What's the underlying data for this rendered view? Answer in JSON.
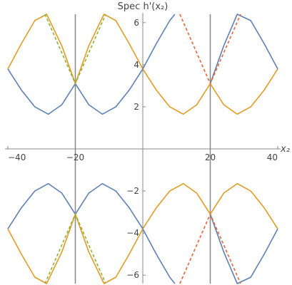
{
  "chart_data": {
    "type": "line",
    "title": "",
    "ylabel": "Spec h'(x₂)",
    "xlabel": "x₂",
    "xlim": [
      -40,
      40
    ],
    "ylim": [
      -6.4,
      6.4
    ],
    "x_ticks": [
      -40,
      -20,
      0,
      20,
      40
    ],
    "x_tick_labels": [
      "−40",
      "−20",
      "0",
      "20",
      "40"
    ],
    "y_ticks": [
      -6,
      -4,
      -2,
      2,
      4,
      6
    ],
    "y_tick_labels": [
      "−6",
      "−4",
      "−2",
      "2",
      "4",
      "6"
    ],
    "grid": false,
    "legend": "none",
    "vertical_lines": [
      {
        "x": -20,
        "color": "#888888"
      },
      {
        "x": 20,
        "color": "#888888"
      }
    ],
    "series": [
      {
        "style": "solid",
        "color": "#5e81b5",
        "x": [
          -40,
          -36,
          -32,
          -28,
          -24,
          -20,
          -16,
          -12,
          -8,
          -4,
          0,
          4,
          8,
          9.5
        ],
        "y": [
          3.8,
          2.8,
          2.0,
          1.65,
          2.1,
          3.1,
          2.1,
          1.65,
          2.0,
          2.8,
          3.8,
          5.0,
          6.1,
          6.4
        ]
      },
      {
        "style": "solid",
        "color": "#e19c24",
        "x": [
          -40,
          -36,
          -32,
          -28.5,
          -24,
          -20,
          -16,
          -11.5,
          -8,
          -4,
          0,
          4,
          8,
          12,
          16,
          20,
          24,
          28,
          32,
          36,
          40
        ],
        "y": [
          3.8,
          5.0,
          6.1,
          6.4,
          4.9,
          3.1,
          4.9,
          6.4,
          6.1,
          5.0,
          3.8,
          2.8,
          2.0,
          1.65,
          2.1,
          3.1,
          2.1,
          1.65,
          2.0,
          2.8,
          3.8
        ]
      },
      {
        "style": "solid",
        "color": "#5e81b5",
        "x": [
          20,
          24,
          28,
          32,
          36,
          40
        ],
        "y": [
          3.1,
          4.9,
          6.4,
          6.1,
          5.0,
          3.8
        ]
      },
      {
        "style": "dashed",
        "color": "#8fb131",
        "x": [
          -29,
          -20,
          -11
        ],
        "y": [
          6.4,
          3.1,
          6.4
        ]
      },
      {
        "style": "dashed",
        "color": "#eb6235",
        "x": [
          11,
          20,
          29
        ],
        "y": [
          6.4,
          3.1,
          6.4
        ]
      },
      {
        "style": "solid",
        "color": "#5e81b5",
        "x": [
          -40,
          -36,
          -32,
          -28,
          -24,
          -20,
          -16,
          -12,
          -8,
          -4,
          0,
          4,
          8,
          9.5
        ],
        "y": [
          -3.8,
          -2.8,
          -2.0,
          -1.65,
          -2.1,
          -3.1,
          -2.1,
          -1.65,
          -2.0,
          -2.8,
          -3.8,
          -5.0,
          -6.1,
          -6.4
        ]
      },
      {
        "style": "solid",
        "color": "#e19c24",
        "x": [
          -40,
          -36,
          -32,
          -28.5,
          -24,
          -20,
          -16,
          -11.5,
          -8,
          -4,
          0,
          4,
          8,
          12,
          16,
          20,
          24,
          28,
          32,
          36,
          40
        ],
        "y": [
          -3.8,
          -5.0,
          -6.1,
          -6.4,
          -4.9,
          -3.1,
          -4.9,
          -6.4,
          -6.1,
          -5.0,
          -3.8,
          -2.8,
          -2.0,
          -1.65,
          -2.1,
          -3.1,
          -2.1,
          -1.65,
          -2.0,
          -2.8,
          -3.8
        ]
      },
      {
        "style": "solid",
        "color": "#5e81b5",
        "x": [
          20,
          24,
          28,
          32,
          36,
          40
        ],
        "y": [
          -3.1,
          -4.9,
          -6.4,
          -6.1,
          -5.0,
          -3.8
        ]
      },
      {
        "style": "dashed",
        "color": "#8fb131",
        "x": [
          -29,
          -20,
          -11
        ],
        "y": [
          -6.4,
          -3.1,
          -6.4
        ]
      },
      {
        "style": "dashed",
        "color": "#eb6235",
        "x": [
          11,
          20,
          29
        ],
        "y": [
          -6.4,
          -3.1,
          -6.4
        ]
      }
    ]
  }
}
